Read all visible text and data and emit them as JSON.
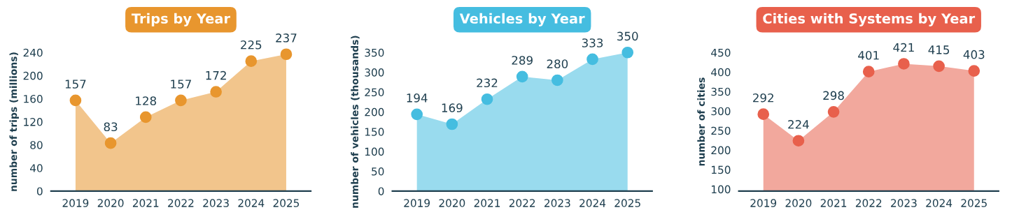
{
  "chart_data": [
    {
      "type": "area",
      "title": "Trips by Year",
      "ylabel": "number of trips (millions)",
      "categories": [
        "2019",
        "2020",
        "2021",
        "2022",
        "2023",
        "2024",
        "2025"
      ],
      "series": [
        {
          "color": "#e8962e",
          "values": [
            157,
            83,
            128,
            157,
            172,
            225,
            237
          ]
        }
      ],
      "ylim": [
        0,
        240
      ],
      "yticks": [
        0,
        40,
        80,
        120,
        160,
        200,
        240
      ],
      "marker": "circle",
      "data_labels": true,
      "grid": false,
      "legend": false
    },
    {
      "type": "area",
      "title": "Vehicles by Year",
      "ylabel": "number of vehicles (thousands)",
      "categories": [
        "2019",
        "2020",
        "2021",
        "2022",
        "2023",
        "2024",
        "2025"
      ],
      "series": [
        {
          "color": "#45bde0",
          "values": [
            194,
            169,
            232,
            289,
            280,
            333,
            350
          ]
        }
      ],
      "ylim": [
        0,
        350
      ],
      "yticks": [
        0,
        50,
        100,
        150,
        200,
        250,
        300,
        350
      ],
      "marker": "circle",
      "data_labels": true,
      "grid": false,
      "legend": false
    },
    {
      "type": "area",
      "title": "Cities with Systems by Year",
      "ylabel": "number of cities",
      "categories": [
        "2019",
        "2020",
        "2021",
        "2022",
        "2023",
        "2024",
        "2025"
      ],
      "series": [
        {
          "color": "#e8604c",
          "values": [
            292,
            224,
            298,
            401,
            421,
            415,
            403
          ]
        }
      ],
      "ylim": [
        95,
        450
      ],
      "yticks": [
        100,
        150,
        200,
        250,
        300,
        350,
        400,
        450
      ],
      "marker": "circle",
      "data_labels": true,
      "grid": false,
      "legend": false
    }
  ]
}
